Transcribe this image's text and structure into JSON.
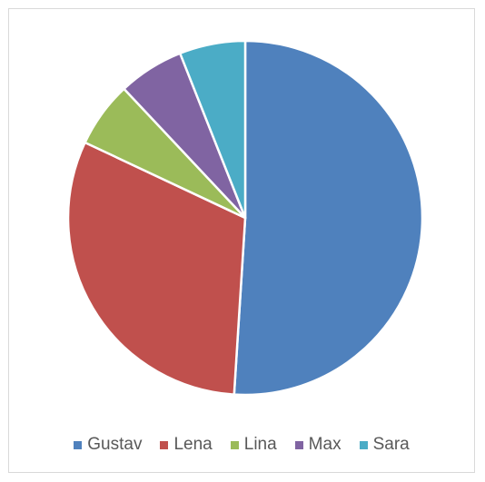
{
  "chart_data": {
    "type": "pie",
    "title": "",
    "legend_position": "bottom",
    "start_angle_deg": 0,
    "direction": "clockwise",
    "slices": [
      {
        "label": "Gustav",
        "value": 51,
        "color": "#4F81BD"
      },
      {
        "label": "Lena",
        "value": 31,
        "color": "#C0504D"
      },
      {
        "label": "Lina",
        "value": 6,
        "color": "#9BBB59"
      },
      {
        "label": "Max",
        "value": 6,
        "color": "#8064A2"
      },
      {
        "label": "Sara",
        "value": 6,
        "color": "#4BACC6"
      }
    ]
  },
  "legend": {
    "items": [
      {
        "label": "Gustav",
        "color": "#4F81BD"
      },
      {
        "label": "Lena",
        "color": "#C0504D"
      },
      {
        "label": "Lina",
        "color": "#9BBB59"
      },
      {
        "label": "Max",
        "color": "#8064A2"
      },
      {
        "label": "Sara",
        "color": "#4BACC6"
      }
    ]
  }
}
